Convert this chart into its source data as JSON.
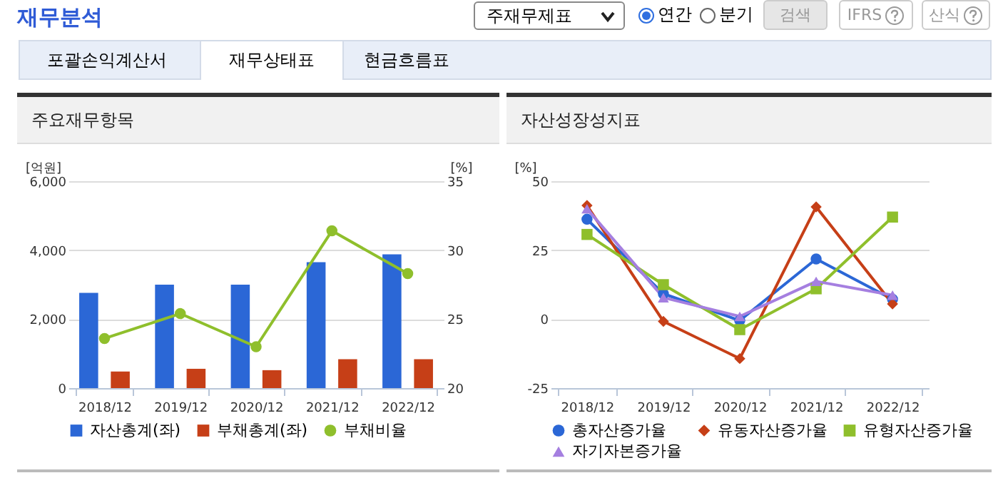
{
  "chart_data": [
    {
      "type": "other",
      "title": "재무분석",
      "annotations": [
        "주재무제표",
        "연간",
        "분기",
        "검색",
        "IFRS",
        "산식",
        "포괄손익계산서",
        "재무상태표",
        "현금흐름표"
      ]
    },
    {
      "type": "bar",
      "title": "주요재무항목",
      "categories": [
        "2018/12",
        "2019/12",
        "2020/12",
        "2021/12",
        "2022/12"
      ],
      "ylabel": "[억원]",
      "y2label": "[%]",
      "ylim": [
        0,
        6000
      ],
      "yticks": [
        0,
        {
          "value": 2000,
          "label": "2,000"
        },
        {
          "value": 4000,
          "label": "4,000"
        },
        {
          "value": 6000,
          "label": "6,000"
        }
      ],
      "y2lim": [
        20,
        35
      ],
      "y2ticks": [
        20,
        25,
        30,
        35
      ],
      "grid": "y",
      "legend": "bottom",
      "marker": "circle",
      "series": [
        {
          "name": "자산총계(좌)",
          "color": "#2b67d6",
          "values": [
            2760,
            3000,
            3000,
            3650,
            3880
          ]
        },
        {
          "name": "부채총계(좌)",
          "color": "#c63f17",
          "values": [
            480,
            560,
            520,
            840,
            840
          ]
        },
        {
          "name": "부채비율",
          "type": "line",
          "axis": "y2",
          "color": "#8fbf2c",
          "values": [
            23.6,
            25.4,
            23.0,
            31.4,
            28.3
          ]
        }
      ]
    },
    {
      "type": "line",
      "title": "자산성장성지표",
      "categories": [
        "2018/12",
        "2019/12",
        "2020/12",
        "2021/12",
        "2022/12"
      ],
      "ylabel": "[%]",
      "ylim": [
        -25,
        50
      ],
      "yticks": [
        -25,
        0,
        25,
        50
      ],
      "grid": "y",
      "legend": "bottom",
      "series": [
        {
          "name": "총자산증가율",
          "color": "#2b67d6",
          "marker": "circle",
          "values": [
            36.2,
            9.2,
            -0.5,
            21.8,
            7.2
          ]
        },
        {
          "name": "유동자산증가율",
          "color": "#c63f17",
          "marker": "diamond",
          "values": [
            41.2,
            -0.8,
            -14.3,
            40.7,
            5.5
          ]
        },
        {
          "name": "유형자산증가율",
          "color": "#8fbf2c",
          "marker": "square",
          "values": [
            30.7,
            12.5,
            -3.8,
            11.0,
            37.0
          ]
        },
        {
          "name": "자기자본증가율",
          "color": "#a57fe0",
          "marker": "triangle",
          "values": [
            40.0,
            7.8,
            1.0,
            13.7,
            8.7
          ]
        }
      ]
    }
  ]
}
